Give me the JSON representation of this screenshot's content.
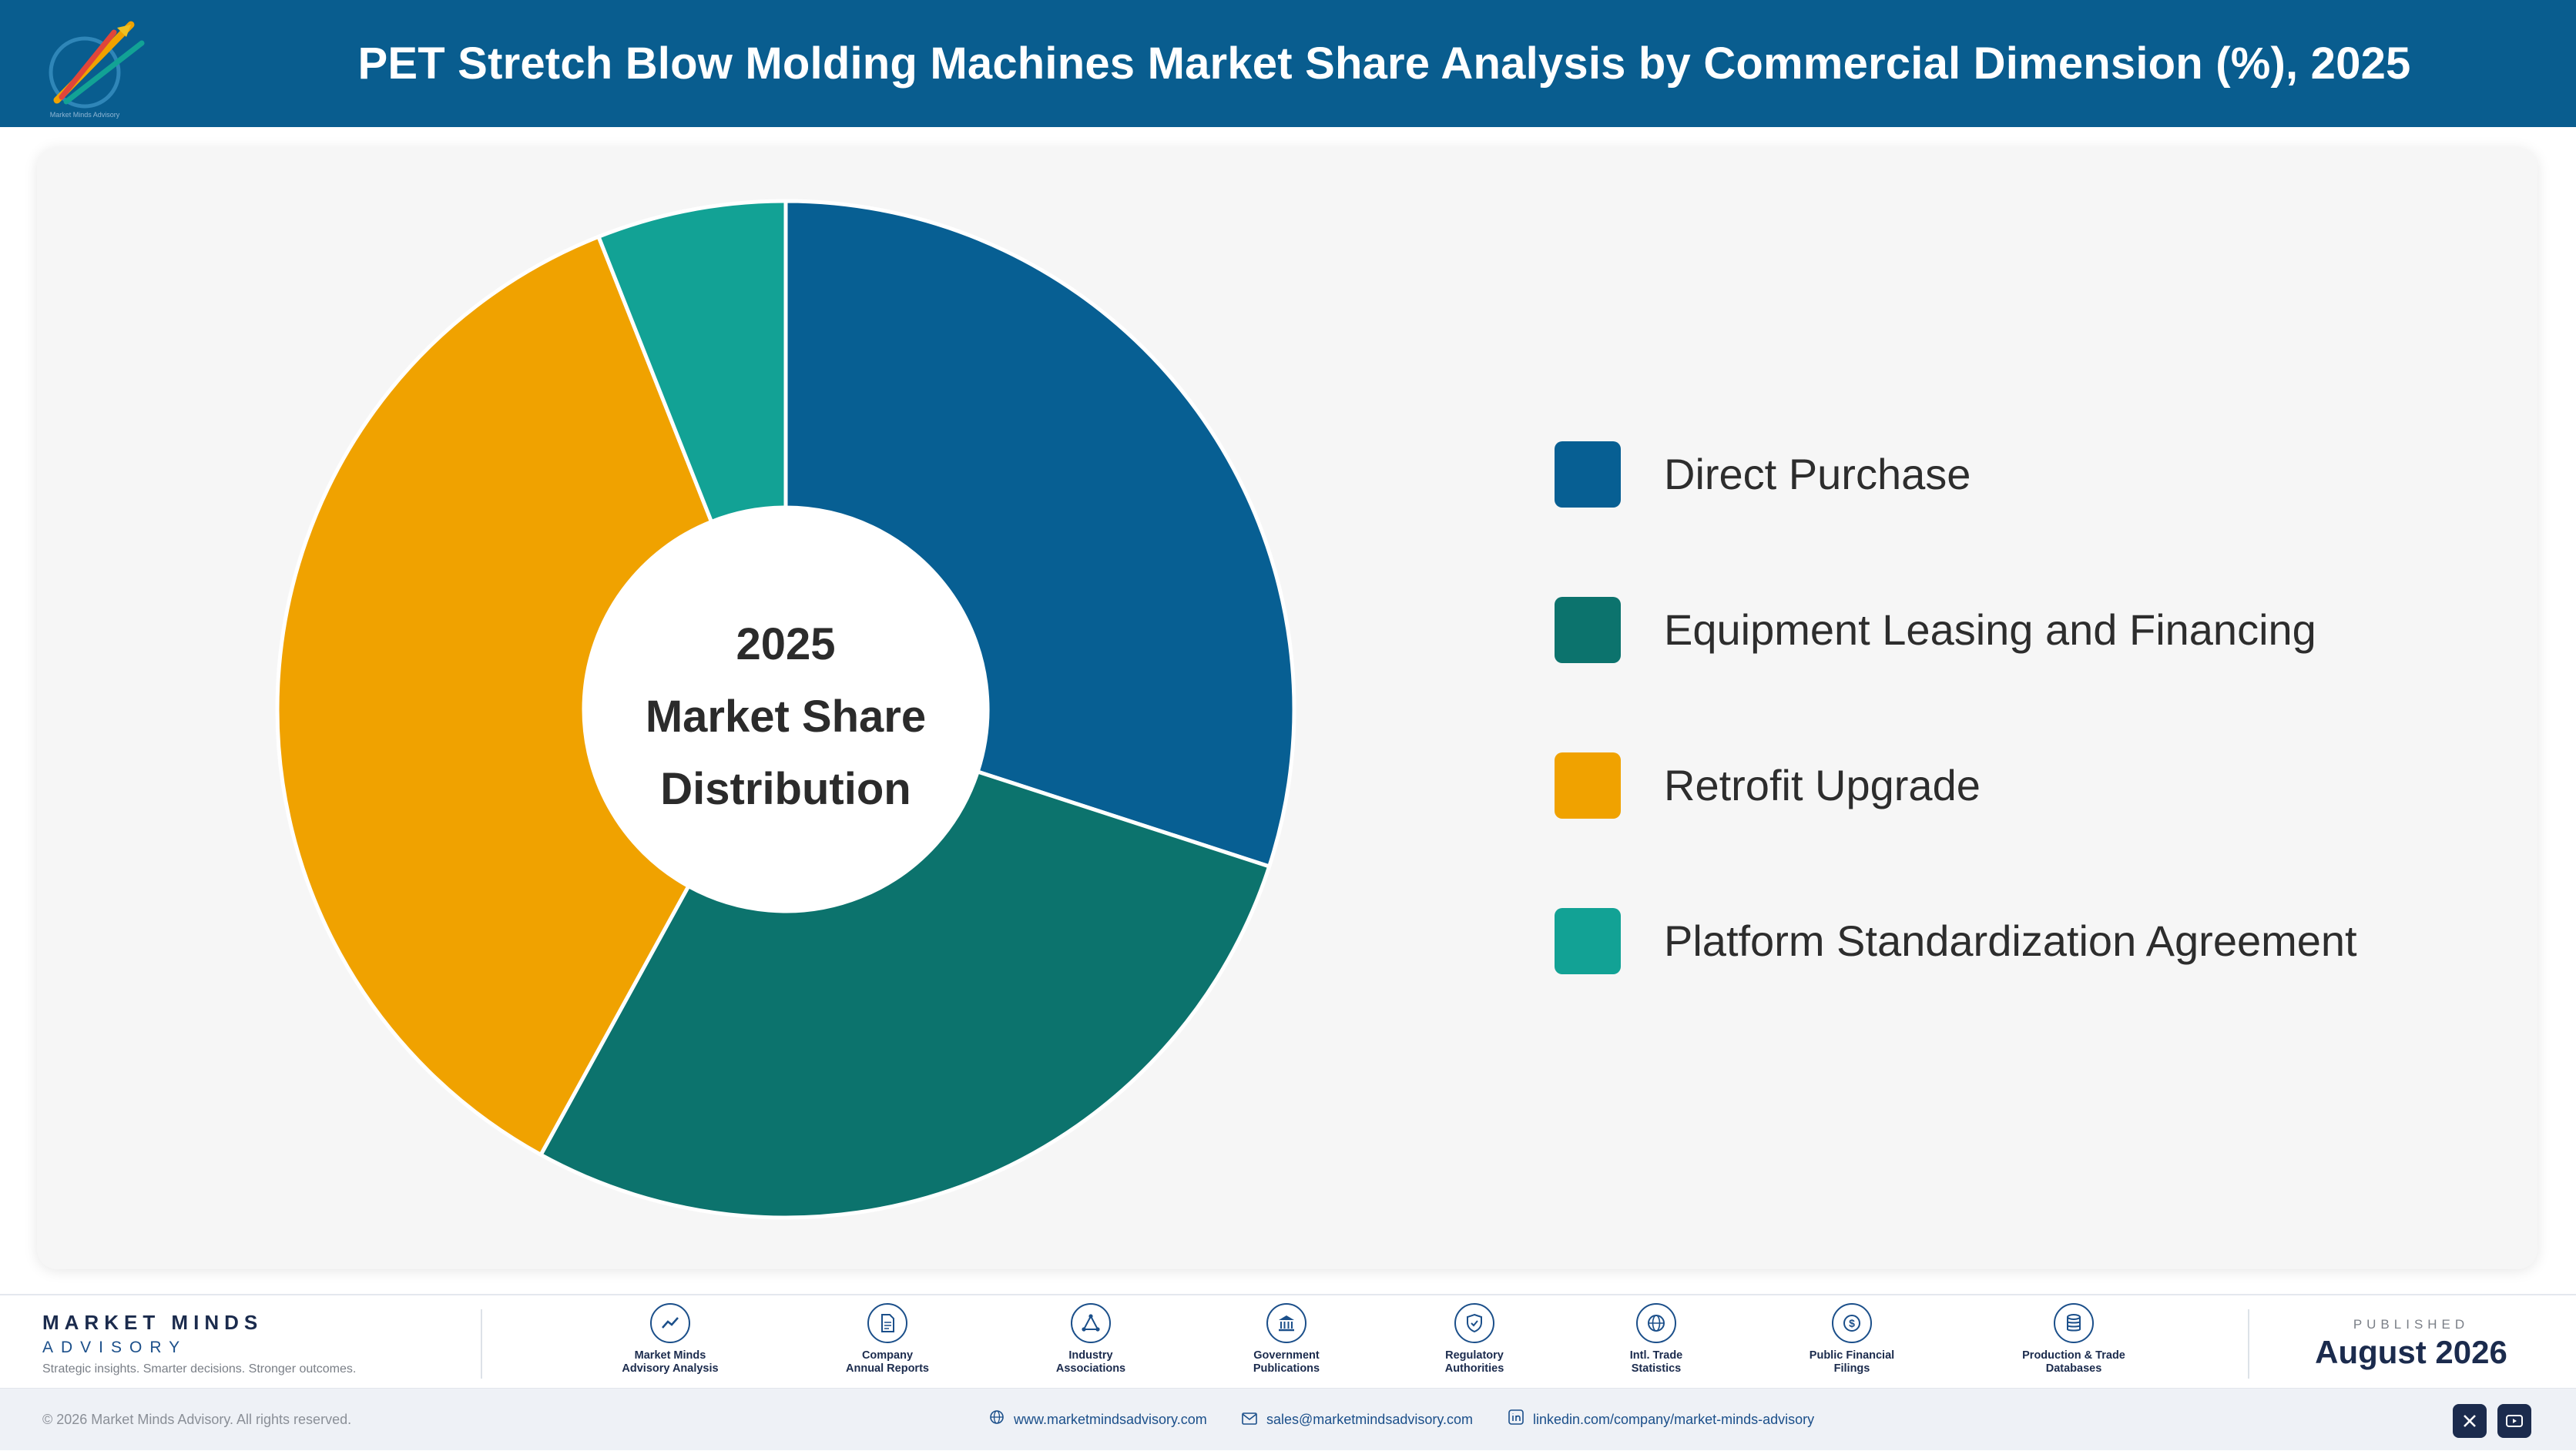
{
  "header": {
    "title": "PET Stretch Blow Molding Machines Market Share Analysis by Commercial Dimension (%), 2025",
    "background": "#095d8f"
  },
  "chart_data": {
    "type": "pie",
    "variant": "donut",
    "title": "PET Stretch Blow Molding Machines Market Share Analysis by Commercial Dimension (%), 2025",
    "center_label": [
      "2025",
      "Market Share",
      "Distribution"
    ],
    "categories": [
      "Direct Purchase",
      "Equipment Leasing and Financing",
      "Retrofit Upgrade",
      "Platform Standardization Agreement"
    ],
    "values": [
      30.0,
      28.0,
      36.0,
      6.0
    ],
    "unit": "%",
    "colors": [
      "#075f93",
      "#0c736d",
      "#f0a200",
      "#12a295"
    ],
    "legend": "right"
  },
  "footer": {
    "brand_name": "MARKET MINDS",
    "brand_sub": "ADVISORY",
    "tagline": "Strategic insights. Smarter decisions. Stronger outcomes.",
    "sources": [
      {
        "label": "Market Minds\nAdvisory Analysis",
        "icon": "trend-chart-icon"
      },
      {
        "label": "Company\nAnnual Reports",
        "icon": "document-icon"
      },
      {
        "label": "Industry\nAssociations",
        "icon": "network-icon"
      },
      {
        "label": "Government\nPublications",
        "icon": "government-building-icon"
      },
      {
        "label": "Regulatory\nAuthorities",
        "icon": "shield-icon"
      },
      {
        "label": "Intl. Trade\nStatistics",
        "icon": "globe-icon"
      },
      {
        "label": "Public Financial\nFilings",
        "icon": "dollar-coin-icon"
      },
      {
        "label": "Production & Trade\nDatabases",
        "icon": "database-icon"
      }
    ],
    "published_label": "PUBLISHED",
    "published_date": "August 2026"
  },
  "bottom_bar": {
    "copyright": "© 2026 Market Minds Advisory. All rights reserved.",
    "website": "www.marketmindsadvisory.com",
    "email": "sales@marketmindsadvisory.com",
    "linkedin": "linkedin.com/company/market-minds-advisory"
  }
}
